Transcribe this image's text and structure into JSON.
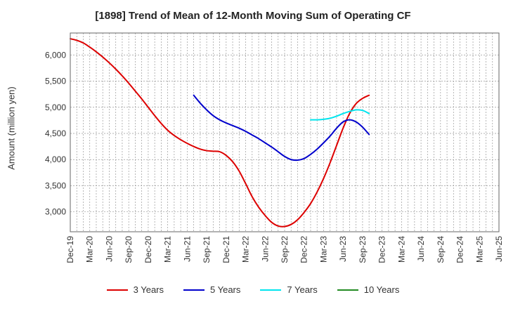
{
  "chart_data": {
    "type": "line",
    "title": "[1898]  Trend of Mean of 12-Month Moving Sum of Operating CF",
    "xlabel": "",
    "ylabel": "Amount (million yen)",
    "ylim": [
      2620,
      6420
    ],
    "yticks": [
      3000,
      3500,
      4000,
      4500,
      5000,
      5500,
      6000
    ],
    "ytick_labels": [
      "3,000",
      "3,500",
      "4,000",
      "4,500",
      "5,000",
      "5,500",
      "6,000"
    ],
    "x_range_months": [
      0,
      66
    ],
    "xticks": [
      {
        "label": "Dec-19",
        "m": 0
      },
      {
        "label": "Mar-20",
        "m": 3
      },
      {
        "label": "Jun-20",
        "m": 6
      },
      {
        "label": "Sep-20",
        "m": 9
      },
      {
        "label": "Dec-20",
        "m": 12
      },
      {
        "label": "Mar-21",
        "m": 15
      },
      {
        "label": "Jun-21",
        "m": 18
      },
      {
        "label": "Sep-21",
        "m": 21
      },
      {
        "label": "Dec-21",
        "m": 24
      },
      {
        "label": "Mar-22",
        "m": 27
      },
      {
        "label": "Jun-22",
        "m": 30
      },
      {
        "label": "Sep-22",
        "m": 33
      },
      {
        "label": "Dec-22",
        "m": 36
      },
      {
        "label": "Mar-23",
        "m": 39
      },
      {
        "label": "Jun-23",
        "m": 42
      },
      {
        "label": "Sep-23",
        "m": 45
      },
      {
        "label": "Dec-23",
        "m": 48
      },
      {
        "label": "Mar-24",
        "m": 51
      },
      {
        "label": "Jun-24",
        "m": 54
      },
      {
        "label": "Sep-24",
        "m": 57
      },
      {
        "label": "Dec-24",
        "m": 60
      },
      {
        "label": "Mar-25",
        "m": 63
      },
      {
        "label": "Jun-25",
        "m": 66
      }
    ],
    "grid": true,
    "legend_position": "bottom",
    "series": [
      {
        "name": "3 Years",
        "color": "#dd0000",
        "points": [
          [
            0,
            6310
          ],
          [
            1,
            6280
          ],
          [
            2,
            6230
          ],
          [
            3,
            6150
          ],
          [
            4,
            6060
          ],
          [
            5,
            5960
          ],
          [
            6,
            5850
          ],
          [
            7,
            5730
          ],
          [
            8,
            5600
          ],
          [
            9,
            5460
          ],
          [
            10,
            5310
          ],
          [
            11,
            5160
          ],
          [
            12,
            5000
          ],
          [
            13,
            4840
          ],
          [
            14,
            4690
          ],
          [
            15,
            4560
          ],
          [
            16,
            4460
          ],
          [
            17,
            4380
          ],
          [
            18,
            4310
          ],
          [
            19,
            4250
          ],
          [
            20,
            4200
          ],
          [
            21,
            4170
          ],
          [
            22,
            4160
          ],
          [
            23,
            4150
          ],
          [
            24,
            4080
          ],
          [
            25,
            3960
          ],
          [
            26,
            3780
          ],
          [
            27,
            3540
          ],
          [
            28,
            3290
          ],
          [
            29,
            3090
          ],
          [
            30,
            2930
          ],
          [
            31,
            2800
          ],
          [
            32,
            2730
          ],
          [
            33,
            2720
          ],
          [
            34,
            2760
          ],
          [
            35,
            2850
          ],
          [
            36,
            2990
          ],
          [
            37,
            3160
          ],
          [
            38,
            3380
          ],
          [
            39,
            3640
          ],
          [
            40,
            3940
          ],
          [
            41,
            4270
          ],
          [
            42,
            4600
          ],
          [
            43,
            4880
          ],
          [
            44,
            5070
          ],
          [
            45,
            5170
          ],
          [
            46,
            5230
          ]
        ]
      },
      {
        "name": "5 Years",
        "color": "#0000cc",
        "points": [
          [
            19,
            5230
          ],
          [
            20,
            5080
          ],
          [
            21,
            4950
          ],
          [
            22,
            4840
          ],
          [
            23,
            4760
          ],
          [
            24,
            4700
          ],
          [
            25,
            4650
          ],
          [
            26,
            4600
          ],
          [
            27,
            4540
          ],
          [
            28,
            4470
          ],
          [
            29,
            4400
          ],
          [
            30,
            4320
          ],
          [
            31,
            4240
          ],
          [
            32,
            4150
          ],
          [
            33,
            4060
          ],
          [
            34,
            4000
          ],
          [
            35,
            3990
          ],
          [
            36,
            4020
          ],
          [
            37,
            4100
          ],
          [
            38,
            4200
          ],
          [
            39,
            4320
          ],
          [
            40,
            4450
          ],
          [
            41,
            4600
          ],
          [
            42,
            4720
          ],
          [
            43,
            4760
          ],
          [
            44,
            4720
          ],
          [
            45,
            4620
          ],
          [
            46,
            4480
          ]
        ]
      },
      {
        "name": "7 Years",
        "color": "#00e5ee",
        "points": [
          [
            37,
            4760
          ],
          [
            38,
            4760
          ],
          [
            39,
            4770
          ],
          [
            40,
            4790
          ],
          [
            41,
            4830
          ],
          [
            42,
            4880
          ],
          [
            43,
            4920
          ],
          [
            44,
            4950
          ],
          [
            45,
            4940
          ],
          [
            46,
            4880
          ]
        ]
      },
      {
        "name": "10 Years",
        "color": "#228b22",
        "points": []
      }
    ]
  }
}
